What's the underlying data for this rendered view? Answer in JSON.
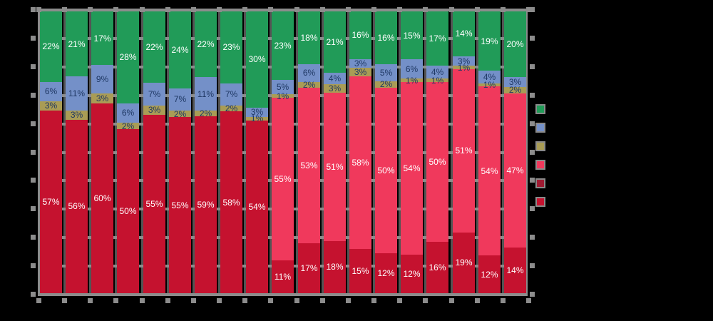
{
  "chart_data": {
    "type": "bar",
    "stacked": true,
    "percent_normalized": true,
    "bar_count": 19,
    "grid": true,
    "x_axis": {
      "tick_labels_visible": false
    },
    "y_axis": {
      "min": 0,
      "max": 100,
      "step": 10,
      "tick_labels_visible": false
    },
    "legend": {
      "position": "right",
      "labels_visible": true
    },
    "legend_labels": [
      "",
      "",
      "",
      "",
      "",
      ""
    ],
    "label_suffix": "%",
    "series": [
      {
        "key": "green",
        "color": "#219B58",
        "label_color": "#FFFFFF",
        "legend_label": "",
        "values": [
          22,
          21,
          17,
          28,
          22,
          24,
          22,
          23,
          30,
          23,
          18,
          21,
          16,
          16,
          15,
          17,
          14,
          19,
          20
        ]
      },
      {
        "key": "blue",
        "color": "#7490C8",
        "label_color": "#1F3864",
        "legend_label": "",
        "values": [
          6,
          11,
          9,
          6,
          7,
          7,
          11,
          7,
          3,
          5,
          6,
          4,
          3,
          5,
          6,
          4,
          3,
          4,
          3
        ]
      },
      {
        "key": "olive",
        "color": "#A99C55",
        "label_color": "#1F3864",
        "legend_label": "",
        "values": [
          3,
          3,
          3,
          2,
          3,
          2,
          2,
          2,
          1,
          1,
          2,
          3,
          3,
          2,
          1,
          1,
          1,
          1,
          2
        ]
      },
      {
        "key": "pink",
        "color": "#F0395C",
        "label_color": "#FFFFFF",
        "legend_label": "",
        "values": [
          0,
          0,
          0,
          0,
          0,
          0,
          0,
          0,
          0,
          55,
          53,
          51,
          58,
          50,
          54,
          50,
          51,
          54,
          47
        ]
      },
      {
        "key": "darkred",
        "color": "#9E1B32",
        "label_color": "#FFFFFF",
        "legend_label": "",
        "values": [
          0,
          0,
          0,
          0,
          0,
          0,
          0,
          0,
          0,
          0,
          0,
          0,
          0,
          0,
          0,
          0,
          0,
          0,
          0
        ]
      },
      {
        "key": "crimson",
        "color": "#C5122F",
        "label_color": "#FFFFFF",
        "legend_label": "",
        "values": [
          57,
          56,
          60,
          50,
          55,
          55,
          59,
          58,
          54,
          11,
          17,
          18,
          15,
          12,
          12,
          16,
          19,
          12,
          14
        ]
      }
    ]
  },
  "colors": {
    "background": "#000000",
    "grid_major": "#8C8C8C",
    "grid_minor": "#545454"
  }
}
